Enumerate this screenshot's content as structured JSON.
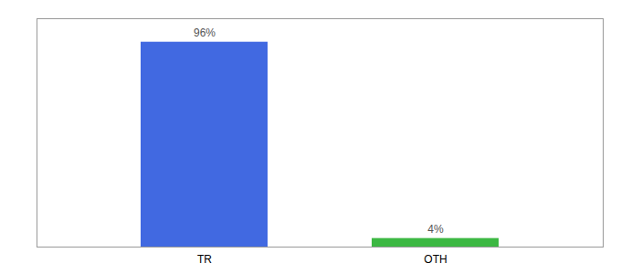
{
  "chart_data": {
    "type": "bar",
    "categories": [
      "TR",
      "OTH"
    ],
    "values": [
      96,
      4
    ],
    "value_labels": [
      "96%",
      "4%"
    ],
    "colors": [
      "#4169e1",
      "#3cb843"
    ],
    "ylim": [
      0,
      107
    ],
    "yticks": [],
    "data_labels": true,
    "tick_labels": "x"
  }
}
